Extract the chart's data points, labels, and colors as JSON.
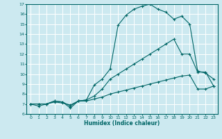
{
  "xlabel": "Humidex (Indice chaleur)",
  "xlim": [
    -0.5,
    23.5
  ],
  "ylim": [
    6,
    17
  ],
  "yticks": [
    6,
    7,
    8,
    9,
    10,
    11,
    12,
    13,
    14,
    15,
    16,
    17
  ],
  "xticks": [
    0,
    1,
    2,
    3,
    4,
    5,
    6,
    7,
    8,
    9,
    10,
    11,
    12,
    13,
    14,
    15,
    16,
    17,
    18,
    19,
    20,
    21,
    22,
    23
  ],
  "bg_color": "#cce9f0",
  "line_color": "#006666",
  "grid_color": "#ffffff",
  "series": [
    {
      "x": [
        0,
        1,
        2,
        3,
        4,
        5,
        6,
        7,
        8,
        9,
        10,
        11,
        12,
        13,
        14,
        15,
        16,
        17,
        18,
        19,
        20,
        21,
        22,
        23
      ],
      "y": [
        7.0,
        6.8,
        7.0,
        7.3,
        7.2,
        6.6,
        7.3,
        7.4,
        8.9,
        9.5,
        10.5,
        14.9,
        15.9,
        16.5,
        16.8,
        17.0,
        16.5,
        16.2,
        15.5,
        15.8,
        15.0,
        10.3,
        10.1,
        9.5
      ]
    },
    {
      "x": [
        0,
        1,
        2,
        3,
        4,
        5,
        6,
        7,
        8,
        9,
        10,
        11,
        12,
        13,
        14,
        15,
        16,
        17,
        18,
        19,
        20,
        21,
        22,
        23
      ],
      "y": [
        7.0,
        7.0,
        7.0,
        7.3,
        7.2,
        6.8,
        7.3,
        7.4,
        7.8,
        8.5,
        9.5,
        10.0,
        10.5,
        11.0,
        11.5,
        12.0,
        12.5,
        13.0,
        13.5,
        12.0,
        12.0,
        10.2,
        10.2,
        8.8
      ]
    },
    {
      "x": [
        0,
        1,
        2,
        3,
        4,
        5,
        6,
        7,
        8,
        9,
        10,
        11,
        12,
        13,
        14,
        15,
        16,
        17,
        18,
        19,
        20,
        21,
        22,
        23
      ],
      "y": [
        7.0,
        7.0,
        7.0,
        7.2,
        7.1,
        6.9,
        7.3,
        7.3,
        7.5,
        7.7,
        8.0,
        8.2,
        8.4,
        8.6,
        8.8,
        9.0,
        9.2,
        9.4,
        9.6,
        9.8,
        9.9,
        8.5,
        8.5,
        8.8
      ]
    }
  ]
}
